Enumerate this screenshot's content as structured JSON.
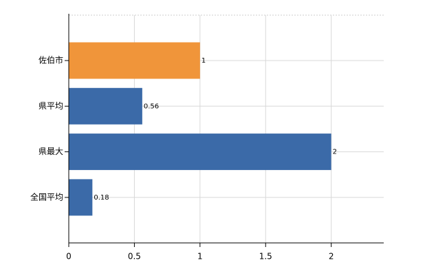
{
  "chart_data": {
    "type": "bar",
    "orientation": "horizontal",
    "categories": [
      "佐伯市",
      "県平均",
      "県最大",
      "全国平均"
    ],
    "values": [
      1,
      0.56,
      2,
      0.18
    ],
    "colors": [
      "#f0953a",
      "#3b6aa8",
      "#3b6aa8",
      "#3b6aa8"
    ],
    "xlim": [
      0,
      2.4
    ],
    "xticks": [
      0,
      0.5,
      1,
      1.5,
      2
    ],
    "grid": true
  }
}
